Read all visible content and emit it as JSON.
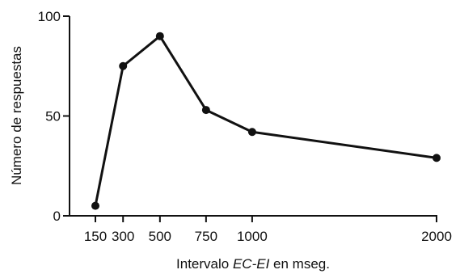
{
  "chart_data": {
    "type": "line",
    "x": [
      150,
      300,
      500,
      750,
      1000,
      2000
    ],
    "series": [
      {
        "values": [
          5,
          75,
          90,
          53,
          42,
          29
        ]
      }
    ],
    "xlabel": "Intervalo EC-EI en mseg.",
    "xlabel_parts": [
      "Intervalo ",
      "EC-EI",
      " en mseg."
    ],
    "ylabel": "Número de respuestas",
    "x_ticks": [
      150,
      300,
      500,
      750,
      1000,
      2000
    ],
    "y_ticks": [
      0,
      50,
      100
    ],
    "ylim": [
      0,
      100
    ],
    "grid": false,
    "colors": {
      "line": "#111111",
      "marker": "#111111"
    }
  }
}
